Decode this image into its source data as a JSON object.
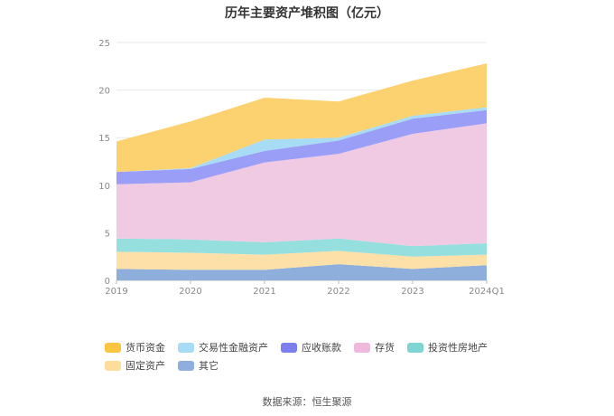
{
  "title": "历年主要资产堆积图（亿元）",
  "source": "数据来源：恒生聚源",
  "chart_data": {
    "type": "area",
    "stacked": true,
    "categories": [
      "2019",
      "2020",
      "2021",
      "2022",
      "2023",
      "2024Q1"
    ],
    "ylim": [
      0,
      25
    ],
    "yticks": [
      0,
      5,
      10,
      15,
      20,
      25
    ],
    "grid": true,
    "legend_position": "bottom",
    "series": [
      {
        "name": "其它",
        "color": "#8eaedb",
        "values": [
          1.2,
          1.1,
          1.1,
          1.7,
          1.2,
          1.6
        ]
      },
      {
        "name": "固定资产",
        "color": "#fde0a8",
        "values": [
          1.8,
          1.8,
          1.6,
          1.4,
          1.3,
          1.1
        ]
      },
      {
        "name": "投资性房地产",
        "color": "#96dfdf",
        "values": [
          1.4,
          1.4,
          1.3,
          1.3,
          1.1,
          1.2
        ]
      },
      {
        "name": "存货",
        "color": "#f0c9e3",
        "values": [
          5.7,
          6.0,
          8.4,
          8.9,
          11.8,
          12.6
        ]
      },
      {
        "name": "应收账款",
        "color": "#9b9ef6",
        "values": [
          1.3,
          1.4,
          1.2,
          1.4,
          1.6,
          1.4
        ]
      },
      {
        "name": "交易性金融资产",
        "color": "#a8dcf5",
        "values": [
          0.0,
          0.1,
          1.2,
          0.3,
          0.3,
          0.3
        ]
      },
      {
        "name": "货币资金",
        "color": "#fcd16f",
        "values": [
          3.2,
          4.9,
          4.4,
          3.8,
          3.7,
          4.6
        ]
      }
    ]
  },
  "legend": {
    "items": [
      {
        "label": "货币资金",
        "color": "#fcc53f"
      },
      {
        "label": "交易性金融资产",
        "color": "#a8dcf5"
      },
      {
        "label": "应收账款",
        "color": "#7b7ff0"
      },
      {
        "label": "存货",
        "color": "#eeb9dc"
      },
      {
        "label": "投资性房地产",
        "color": "#7fd4d4"
      },
      {
        "label": "固定资产",
        "color": "#fddc9c"
      },
      {
        "label": "其它",
        "color": "#8eaedb"
      }
    ]
  }
}
